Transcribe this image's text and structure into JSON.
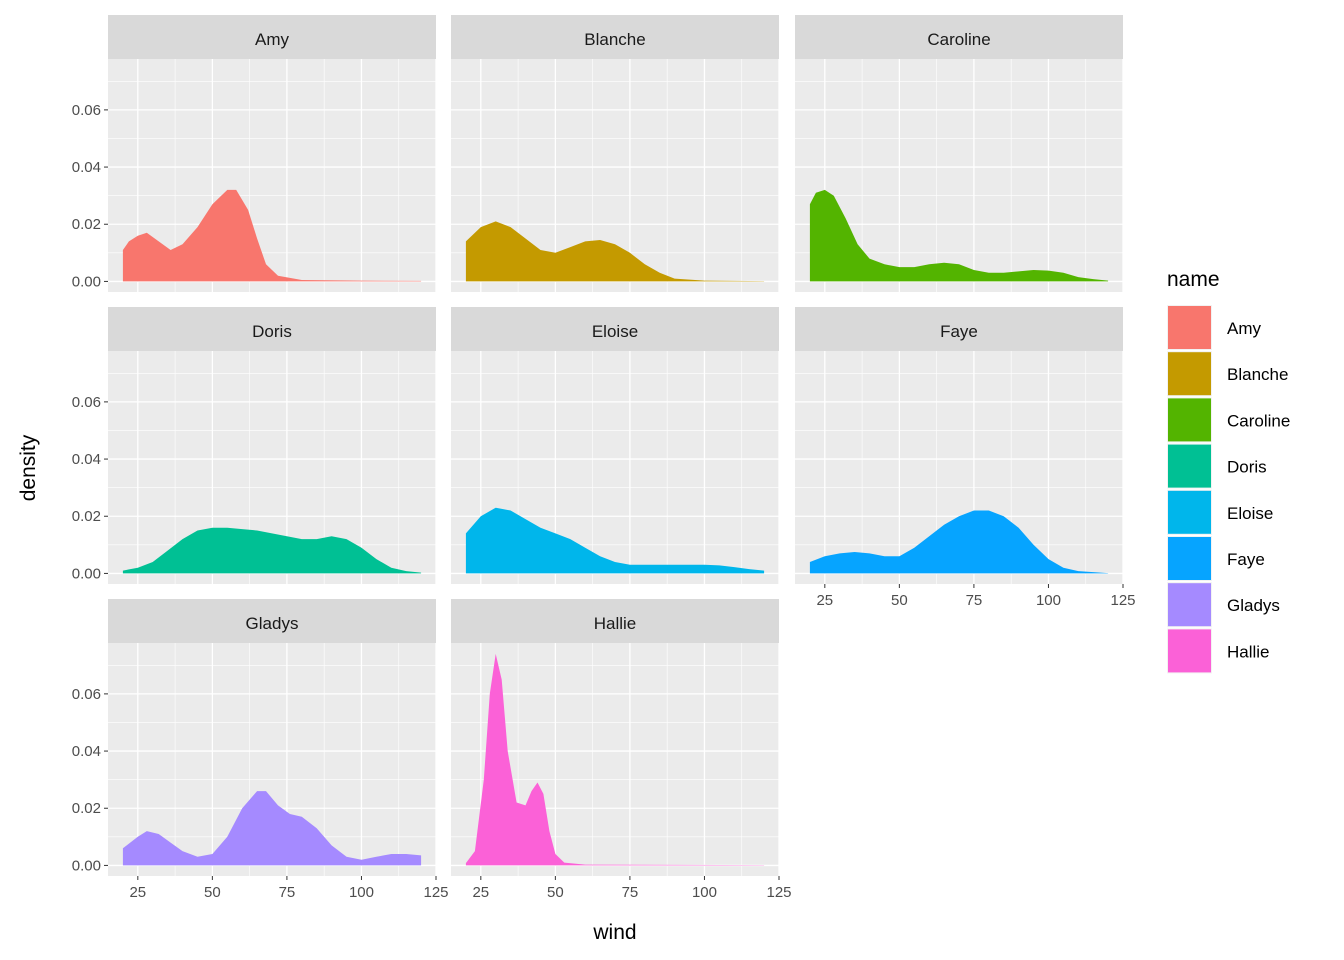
{
  "chart_data": {
    "type": "area",
    "subtype": "faceted density",
    "xlabel": "wind",
    "ylabel": "density",
    "xlim": [
      15,
      125
    ],
    "ylim": [
      -0.0037,
      0.0778
    ],
    "xticks": [
      25,
      50,
      75,
      100,
      125
    ],
    "xtick_labels": [
      "25",
      "50",
      "75",
      "100",
      "125"
    ],
    "yticks": [
      0,
      0.02,
      0.04,
      0.06
    ],
    "ytick_labels": [
      "0.00",
      "0.02",
      "0.04",
      "0.06"
    ],
    "grid": true,
    "legend": {
      "title": "name",
      "placement": "right"
    },
    "series": [
      {
        "name": "Amy",
        "color": "#F8766D",
        "x": [
          20,
          22,
          25,
          28,
          32,
          36,
          40,
          45,
          50,
          55,
          58,
          62,
          65,
          68,
          72,
          80,
          100,
          120
        ],
        "y": [
          0.011,
          0.014,
          0.016,
          0.017,
          0.014,
          0.011,
          0.013,
          0.019,
          0.027,
          0.032,
          0.032,
          0.025,
          0.015,
          0.006,
          0.002,
          0.0005,
          0.0003,
          0.0002
        ]
      },
      {
        "name": "Blanche",
        "color": "#C49A00",
        "x": [
          20,
          25,
          30,
          35,
          40,
          45,
          50,
          55,
          60,
          65,
          70,
          75,
          80,
          85,
          90,
          100,
          120
        ],
        "y": [
          0.014,
          0.019,
          0.021,
          0.019,
          0.015,
          0.011,
          0.01,
          0.012,
          0.014,
          0.0145,
          0.013,
          0.01,
          0.006,
          0.003,
          0.001,
          0.0003,
          0.0001
        ]
      },
      {
        "name": "Caroline",
        "color": "#53B400",
        "x": [
          20,
          22,
          25,
          28,
          32,
          36,
          40,
          45,
          50,
          55,
          60,
          65,
          70,
          75,
          80,
          85,
          90,
          95,
          100,
          105,
          110,
          115,
          120
        ],
        "y": [
          0.027,
          0.031,
          0.032,
          0.03,
          0.022,
          0.013,
          0.008,
          0.006,
          0.005,
          0.005,
          0.006,
          0.0065,
          0.006,
          0.004,
          0.003,
          0.003,
          0.0035,
          0.004,
          0.0038,
          0.003,
          0.0015,
          0.0008,
          0.0003
        ]
      },
      {
        "name": "Doris",
        "color": "#00C094",
        "x": [
          20,
          25,
          30,
          35,
          40,
          45,
          50,
          55,
          60,
          65,
          70,
          75,
          80,
          85,
          90,
          95,
          100,
          105,
          110,
          115,
          120
        ],
        "y": [
          0.001,
          0.002,
          0.004,
          0.008,
          0.012,
          0.015,
          0.016,
          0.016,
          0.0155,
          0.015,
          0.014,
          0.013,
          0.012,
          0.012,
          0.013,
          0.012,
          0.009,
          0.005,
          0.002,
          0.0008,
          0.0003
        ]
      },
      {
        "name": "Eloise",
        "color": "#00B6EB",
        "x": [
          20,
          25,
          30,
          35,
          40,
          45,
          50,
          55,
          60,
          65,
          70,
          75,
          80,
          90,
          100,
          105,
          110,
          115,
          120
        ],
        "y": [
          0.014,
          0.02,
          0.023,
          0.022,
          0.019,
          0.016,
          0.014,
          0.012,
          0.009,
          0.006,
          0.004,
          0.003,
          0.003,
          0.003,
          0.003,
          0.0028,
          0.0022,
          0.0015,
          0.001
        ]
      },
      {
        "name": "Faye",
        "color": "#06A4FF",
        "x": [
          20,
          25,
          30,
          35,
          40,
          45,
          50,
          55,
          60,
          65,
          70,
          75,
          80,
          85,
          90,
          95,
          100,
          105,
          110,
          120
        ],
        "y": [
          0.004,
          0.006,
          0.007,
          0.0075,
          0.007,
          0.006,
          0.006,
          0.009,
          0.013,
          0.017,
          0.02,
          0.022,
          0.022,
          0.02,
          0.016,
          0.01,
          0.005,
          0.002,
          0.0008,
          0.0001
        ]
      },
      {
        "name": "Gladys",
        "color": "#A58AFF",
        "x": [
          20,
          25,
          28,
          32,
          36,
          40,
          45,
          50,
          55,
          60,
          65,
          68,
          72,
          76,
          80,
          85,
          90,
          95,
          100,
          105,
          110,
          115,
          120
        ],
        "y": [
          0.006,
          0.01,
          0.012,
          0.011,
          0.008,
          0.005,
          0.003,
          0.004,
          0.01,
          0.02,
          0.026,
          0.026,
          0.021,
          0.018,
          0.017,
          0.013,
          0.007,
          0.003,
          0.002,
          0.003,
          0.004,
          0.004,
          0.0035
        ]
      },
      {
        "name": "Hallie",
        "color": "#FB61D7",
        "x": [
          20,
          23,
          26,
          28,
          30,
          32,
          34,
          37,
          40,
          42,
          44,
          46,
          48,
          50,
          53,
          60,
          120
        ],
        "y": [
          0.0008,
          0.005,
          0.03,
          0.06,
          0.074,
          0.065,
          0.04,
          0.022,
          0.021,
          0.026,
          0.029,
          0.025,
          0.012,
          0.004,
          0.001,
          0.0003,
          0.0001
        ]
      }
    ]
  },
  "colors": {
    "Amy": "#F8766D",
    "Blanche": "#C49A00",
    "Caroline": "#53B400",
    "Doris": "#00C094",
    "Eloise": "#00B6EB",
    "Faye": "#06A4FF",
    "Gladys": "#A58AFF",
    "Hallie": "#FB61D7"
  }
}
